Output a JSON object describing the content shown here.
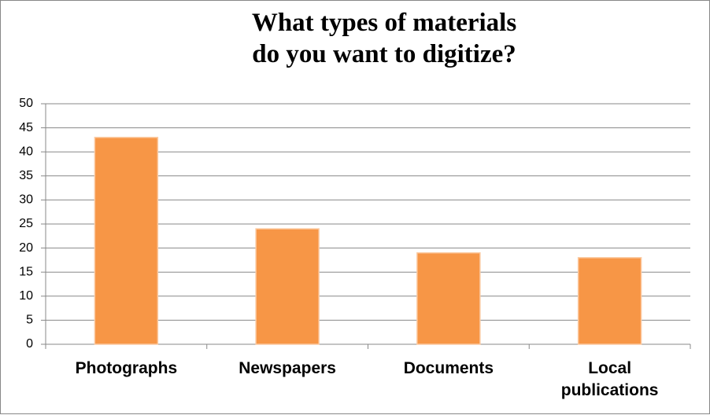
{
  "chart_data": {
    "type": "bar",
    "title": "What types of materials\ndo you want to digitize?",
    "categories": [
      "Photographs",
      "Newspapers",
      "Documents",
      "Local\npublications"
    ],
    "values": [
      43,
      24,
      19,
      18
    ],
    "color": "#f79646",
    "ylim": [
      0,
      50
    ],
    "yticks": [
      0,
      5,
      10,
      15,
      20,
      25,
      30,
      35,
      40,
      45,
      50
    ],
    "grid": true
  }
}
